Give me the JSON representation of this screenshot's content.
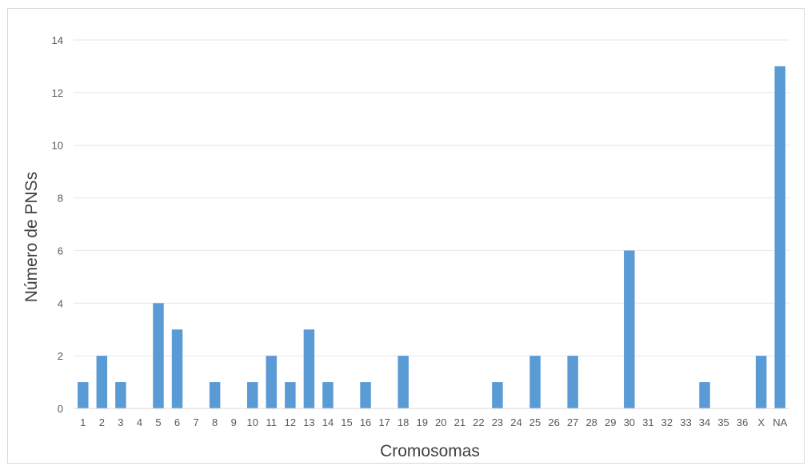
{
  "chart_data": {
    "type": "bar",
    "title": "",
    "xlabel": "Cromosomas",
    "ylabel": "Número de PNSs",
    "ylim": [
      0,
      14
    ],
    "yticks": [
      0,
      2,
      4,
      6,
      8,
      10,
      12,
      14
    ],
    "grid": true,
    "legend": "none",
    "bar_color": "#5b9bd5",
    "categories": [
      "1",
      "2",
      "3",
      "4",
      "5",
      "6",
      "7",
      "8",
      "9",
      "10",
      "11",
      "12",
      "13",
      "14",
      "15",
      "16",
      "17",
      "18",
      "19",
      "20",
      "21",
      "22",
      "23",
      "24",
      "25",
      "26",
      "27",
      "28",
      "29",
      "30",
      "31",
      "32",
      "33",
      "34",
      "35",
      "36",
      "X",
      "NA"
    ],
    "values": [
      1,
      2,
      1,
      0,
      4,
      3,
      0,
      1,
      0,
      1,
      2,
      1,
      3,
      1,
      0,
      1,
      0,
      2,
      0,
      0,
      0,
      0,
      1,
      0,
      2,
      0,
      2,
      0,
      0,
      6,
      0,
      0,
      0,
      1,
      0,
      0,
      2,
      13
    ]
  }
}
